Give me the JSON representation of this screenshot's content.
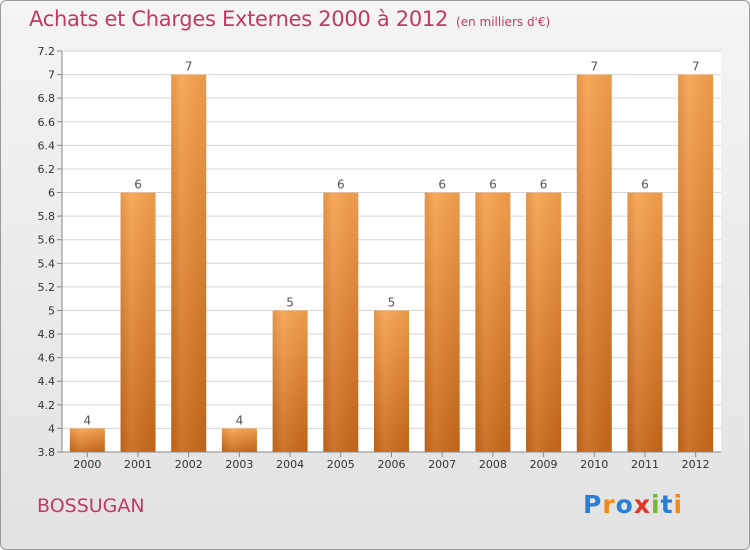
{
  "chart_data": {
    "type": "bar",
    "title": "Achats et Charges Externes 2000 à 2012",
    "subtitle": "(en milliers d'€)",
    "categories": [
      "2000",
      "2001",
      "2002",
      "2003",
      "2004",
      "2005",
      "2006",
      "2007",
      "2008",
      "2009",
      "2010",
      "2011",
      "2012"
    ],
    "values": [
      4,
      6,
      7,
      4,
      5,
      6,
      5,
      6,
      6,
      6,
      7,
      6,
      7
    ],
    "data_labels": [
      "4",
      "6",
      "7",
      "4",
      "5",
      "6",
      "5",
      "6",
      "6",
      "6",
      "7",
      "6",
      "7"
    ],
    "ylim": [
      3.8,
      7.2
    ],
    "yticks": [
      3.8,
      4,
      4.2,
      4.4,
      4.6,
      4.8,
      5,
      5.2,
      5.4,
      5.6,
      5.8,
      6,
      6.2,
      6.4,
      6.6,
      6.8,
      7,
      7.2
    ],
    "ytick_labels": [
      "3.8",
      "4",
      "4.2",
      "4.4",
      "4.6",
      "4.8",
      "5",
      "5.2",
      "5.4",
      "5.6",
      "5.8",
      "6",
      "6.2",
      "6.4",
      "6.6",
      "6.8",
      "7",
      "7.2"
    ],
    "grid": true,
    "xlabel": "",
    "ylabel": "",
    "bar_color_top": "#f7a24f",
    "bar_color_bottom": "#c8681a"
  },
  "location": "BOSSUGAN",
  "logo": {
    "letters": [
      "P",
      "r",
      "o",
      "x",
      "i",
      "t",
      "i"
    ],
    "colors": [
      "#2a7fd4",
      "#f08a1c",
      "#2a7fd4",
      "#e2342d",
      "#7ab53a",
      "#2a7fd4",
      "#f08a1c"
    ]
  }
}
